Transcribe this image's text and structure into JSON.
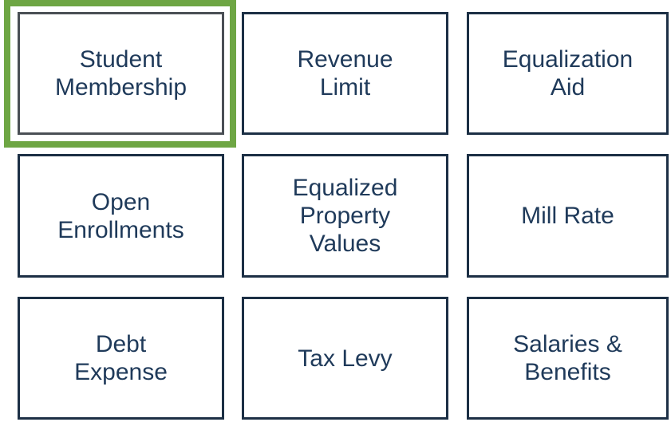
{
  "tiles": [
    {
      "lines": [
        "Student",
        "Membership"
      ]
    },
    {
      "lines": [
        "Revenue",
        "Limit"
      ]
    },
    {
      "lines": [
        "Equalization",
        "Aid"
      ]
    },
    {
      "lines": [
        "Open",
        "Enrollments"
      ]
    },
    {
      "lines": [
        "Equalized",
        "Property",
        "Values"
      ]
    },
    {
      "lines": [
        "Mill Rate"
      ]
    },
    {
      "lines": [
        "Debt",
        "Expense"
      ]
    },
    {
      "lines": [
        "Tax Levy"
      ]
    },
    {
      "lines": [
        "Salaries &",
        "Benefits"
      ]
    }
  ]
}
